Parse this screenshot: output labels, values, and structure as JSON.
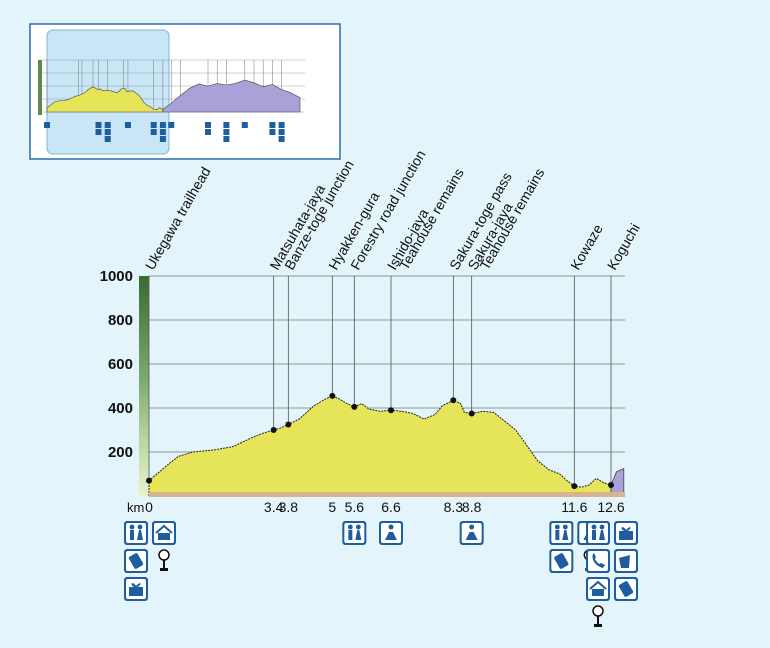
{
  "chart_data": {
    "type": "area",
    "title": "",
    "xlabel": "km",
    "ylabel": "",
    "ylim": [
      0,
      1000
    ],
    "xlim": [
      0,
      12.6
    ],
    "y_ticks": [
      "1000",
      "800",
      "600",
      "400",
      "200"
    ],
    "y_tick_values": [
      1000,
      800,
      600,
      400,
      200
    ],
    "x_axis_label": "km",
    "grid": true,
    "waypoints": [
      {
        "name": "Ukegawa trailhead",
        "km": 0,
        "km_label": "0",
        "elev": 70
      },
      {
        "name": "Matsuhata-jaya",
        "km": 3.4,
        "km_label": "3.4",
        "elev": 300
      },
      {
        "name": "Banze-toge junction",
        "km": 3.8,
        "km_label": "3.8",
        "elev": 325
      },
      {
        "name": "Hyakken-gura",
        "km": 5,
        "km_label": "5",
        "elev": 455
      },
      {
        "name": "Forestry road junction",
        "km": 5.6,
        "km_label": "5.6",
        "elev": 405
      },
      {
        "name": "Ishido-jaya",
        "km": 6.6,
        "km_label": "6.6",
        "elev": 390
      },
      {
        "name": "Teahouse remains",
        "km": 6.6,
        "km_label": "",
        "elev": 390
      },
      {
        "name": "Sakura-toge pass",
        "km": 8.3,
        "km_label": "8.3",
        "elev": 435
      },
      {
        "name": "Sakura-jaya",
        "km": 8.8,
        "km_label": "8.8",
        "elev": 375
      },
      {
        "name": "Teahouse remains",
        "km": 8.8,
        "km_label": "",
        "elev": 375
      },
      {
        "name": "Kowaze",
        "km": 11.6,
        "km_label": "11.6",
        "elev": 45
      },
      {
        "name": "Koguchi",
        "km": 12.6,
        "km_label": "12.6",
        "elev": 50
      }
    ],
    "profile": [
      [
        0,
        70
      ],
      [
        0.5,
        140
      ],
      [
        0.8,
        180
      ],
      [
        1.2,
        200
      ],
      [
        1.8,
        210
      ],
      [
        2.3,
        225
      ],
      [
        2.8,
        265
      ],
      [
        3.1,
        285
      ],
      [
        3.4,
        300
      ],
      [
        3.6,
        310
      ],
      [
        3.8,
        325
      ],
      [
        4.1,
        350
      ],
      [
        4.5,
        410
      ],
      [
        4.8,
        440
      ],
      [
        5,
        455
      ],
      [
        5.2,
        440
      ],
      [
        5.4,
        420
      ],
      [
        5.6,
        405
      ],
      [
        5.8,
        420
      ],
      [
        6.0,
        395
      ],
      [
        6.3,
        385
      ],
      [
        6.6,
        390
      ],
      [
        6.9,
        385
      ],
      [
        7.2,
        375
      ],
      [
        7.5,
        350
      ],
      [
        7.8,
        370
      ],
      [
        8.0,
        410
      ],
      [
        8.3,
        435
      ],
      [
        8.5,
        420
      ],
      [
        8.6,
        380
      ],
      [
        8.8,
        375
      ],
      [
        9.1,
        385
      ],
      [
        9.4,
        380
      ],
      [
        9.7,
        340
      ],
      [
        10.0,
        300
      ],
      [
        10.3,
        230
      ],
      [
        10.6,
        160
      ],
      [
        10.9,
        120
      ],
      [
        11.2,
        100
      ],
      [
        11.4,
        70
      ],
      [
        11.6,
        45
      ],
      [
        11.8,
        40
      ],
      [
        12.0,
        50
      ],
      [
        12.2,
        80
      ],
      [
        12.4,
        60
      ],
      [
        12.6,
        50
      ]
    ],
    "profile_extension": [
      [
        12.6,
        50
      ],
      [
        12.75,
        110
      ],
      [
        12.95,
        125
      ]
    ]
  },
  "colors": {
    "background": "#e3f4fa",
    "profile_fill": "#e6e55a",
    "extension_fill": "#a9a2d8",
    "overview_fill_blue": "#a9a2d8",
    "ground_band": "#d8b38f",
    "yaxis_gradient": [
      "#3a6a35",
      "#78a86a",
      "#b9d79f",
      "#ecf2cf"
    ],
    "icon_blue": "#1e5e9e"
  },
  "amenities": [
    {
      "km": 0,
      "icons": [
        "toilet-icon",
        "hut-icon",
        "vending-machine-icon",
        "bus-stop-icon",
        "gift-shop-icon"
      ]
    },
    {
      "km": 5.6,
      "icons": [
        "toilet-icon"
      ]
    },
    {
      "km": 6.6,
      "icons": [
        "rest-area-icon"
      ]
    },
    {
      "km": 8.8,
      "icons": [
        "rest-area-icon"
      ]
    },
    {
      "km": 11.6,
      "icons": [
        "toilet-icon",
        "rest-area-icon",
        "vending-machine-icon",
        "bus-stop-icon"
      ]
    },
    {
      "km": 12.6,
      "icons": [
        "toilet-icon",
        "gift-shop-icon",
        "telephone-icon",
        "restaurant-icon",
        "hut-icon",
        "vending-machine-icon",
        "bus-stop-icon"
      ]
    }
  ],
  "overview": {
    "description_labels": []
  }
}
